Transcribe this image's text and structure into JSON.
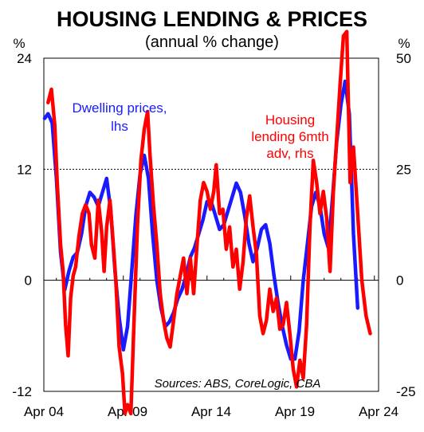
{
  "chart_data": {
    "type": "line",
    "title": "HOUSING LENDING & PRICES",
    "subtitle": "(annual % change)",
    "left_axis_unit": "%",
    "right_axis_unit": "%",
    "left_ylim": [
      -12,
      24
    ],
    "right_ylim": [
      -25,
      50
    ],
    "left_ticks": [
      -12,
      0,
      12,
      24
    ],
    "right_ticks": [
      -25,
      0,
      25,
      50
    ],
    "xlim": [
      2004.25,
      2024.25
    ],
    "x_ticks": [
      {
        "x": 2004.25,
        "label": "Apr 04"
      },
      {
        "x": 2009.25,
        "label": "Apr 09"
      },
      {
        "x": 2014.25,
        "label": "Apr 14"
      },
      {
        "x": 2019.25,
        "label": "Apr 19"
      },
      {
        "x": 2024.25,
        "label": "Apr 24"
      }
    ],
    "grid": "dotted horizontal at 12 and 24 (lhs)",
    "series": [
      {
        "name": "Dwelling prices, lhs",
        "axis": "left",
        "color": "#1a1aff",
        "x": [
          2004.3,
          2004.5,
          2004.75,
          2005.0,
          2005.25,
          2005.5,
          2005.75,
          2006.0,
          2006.25,
          2006.5,
          2006.75,
          2007.0,
          2007.25,
          2007.5,
          2007.75,
          2008.0,
          2008.25,
          2008.5,
          2008.75,
          2009.0,
          2009.25,
          2009.5,
          2009.75,
          2010.0,
          2010.25,
          2010.5,
          2010.75,
          2011.0,
          2011.25,
          2011.5,
          2011.75,
          2012.0,
          2012.25,
          2012.5,
          2012.75,
          2013.0,
          2013.25,
          2013.5,
          2013.75,
          2014.0,
          2014.25,
          2014.5,
          2014.75,
          2015.0,
          2015.25,
          2015.5,
          2015.75,
          2016.0,
          2016.25,
          2016.5,
          2016.75,
          2017.0,
          2017.25,
          2017.5,
          2017.75,
          2018.0,
          2018.25,
          2018.5,
          2018.75,
          2019.0,
          2019.25,
          2019.5,
          2019.75,
          2020.0,
          2020.25,
          2020.5,
          2020.75,
          2021.0,
          2021.25,
          2021.5,
          2021.75,
          2022.0,
          2022.25,
          2022.5,
          2022.75,
          2023.0
        ],
        "values": [
          17.5,
          18,
          17,
          11,
          3,
          -1,
          1,
          2.5,
          3,
          5,
          8,
          9.5,
          9,
          8,
          9.5,
          11,
          7.5,
          1,
          -4,
          -7.5,
          -5,
          1,
          7,
          11.5,
          13.5,
          11,
          5,
          0,
          -3,
          -5,
          -4.5,
          -3.5,
          -2,
          -1,
          0.5,
          2.5,
          3.5,
          5,
          6.5,
          8.5,
          8.5,
          7,
          5.5,
          6,
          7.5,
          9,
          10.5,
          9.5,
          7,
          4,
          2,
          3.5,
          5.5,
          6,
          4,
          0.5,
          -2.5,
          -5,
          -7,
          -8.5,
          -8.5,
          -5.5,
          0,
          4,
          8,
          9.5,
          8,
          5,
          3.5,
          9,
          15,
          19,
          21.5,
          18,
          5,
          -3
        ]
      },
      {
        "name": "Housing lending 6mth adv, rhs",
        "axis": "right",
        "color": "#ff0000",
        "x": [
          2004.5,
          2004.7,
          2004.9,
          2005.05,
          2005.25,
          2005.4,
          2005.55,
          2005.7,
          2005.85,
          2006.0,
          2006.15,
          2006.35,
          2006.55,
          2006.75,
          2006.95,
          2007.1,
          2007.3,
          2007.5,
          2007.7,
          2007.85,
          2008.0,
          2008.2,
          2008.4,
          2008.55,
          2008.75,
          2008.95,
          2009.1,
          2009.25,
          2009.45,
          2009.65,
          2009.85,
          2010.05,
          2010.25,
          2010.45,
          2010.6,
          2010.8,
          2011.0,
          2011.2,
          2011.4,
          2011.6,
          2011.8,
          2012.0,
          2012.2,
          2012.4,
          2012.6,
          2012.8,
          2013.0,
          2013.2,
          2013.4,
          2013.6,
          2013.8,
          2014.0,
          2014.2,
          2014.4,
          2014.55,
          2014.75,
          2014.95,
          2015.15,
          2015.35,
          2015.55,
          2015.75,
          2015.95,
          2016.15,
          2016.35,
          2016.55,
          2016.75,
          2016.95,
          2017.15,
          2017.35,
          2017.55,
          2017.75,
          2017.95,
          2018.15,
          2018.35,
          2018.55,
          2018.75,
          2018.95,
          2019.15,
          2019.35,
          2019.55,
          2019.75,
          2019.95,
          2020.15,
          2020.35,
          2020.55,
          2020.75,
          2020.95,
          2021.15,
          2021.35,
          2021.55,
          2021.75,
          2021.95,
          2022.15,
          2022.35,
          2022.55,
          2022.75,
          2023.0,
          2023.25,
          2023.5,
          2023.75
        ],
        "values": [
          40,
          43,
          35,
          22,
          8,
          2,
          -10,
          -17,
          -4,
          1,
          3,
          10,
          15,
          17,
          15,
          8,
          5,
          18,
          11,
          2,
          12,
          18,
          8,
          0,
          -15,
          -21,
          -30,
          -28,
          -30,
          -8,
          13,
          27,
          34,
          38,
          28,
          17,
          8,
          -3,
          -9,
          -13,
          -15,
          -9,
          -3,
          1,
          5,
          -3,
          5,
          -3,
          8,
          18,
          22,
          20,
          16,
          20,
          26,
          15,
          16,
          7,
          12,
          3,
          7,
          -2,
          4,
          14,
          19,
          12,
          6,
          -8,
          -12,
          -9,
          -2,
          -7,
          -4,
          -11,
          -10,
          -5,
          -12,
          -20,
          -24,
          -18,
          -22,
          -10,
          12,
          27,
          22,
          15,
          20,
          14,
          2,
          20,
          32,
          44,
          55,
          56,
          22,
          30,
          15,
          0,
          -8,
          -12
        ]
      }
    ],
    "annotations": [
      {
        "text": "Dwelling prices,",
        "color": "#1a1aff"
      },
      {
        "text": "lhs",
        "color": "#1a1aff"
      },
      {
        "text": "Housing",
        "color": "#ff0000"
      },
      {
        "text": "lending 6mth",
        "color": "#ff0000"
      },
      {
        "text": "adv, rhs",
        "color": "#ff0000"
      }
    ],
    "source": "Sources: ABS, CoreLogic, CBA"
  }
}
